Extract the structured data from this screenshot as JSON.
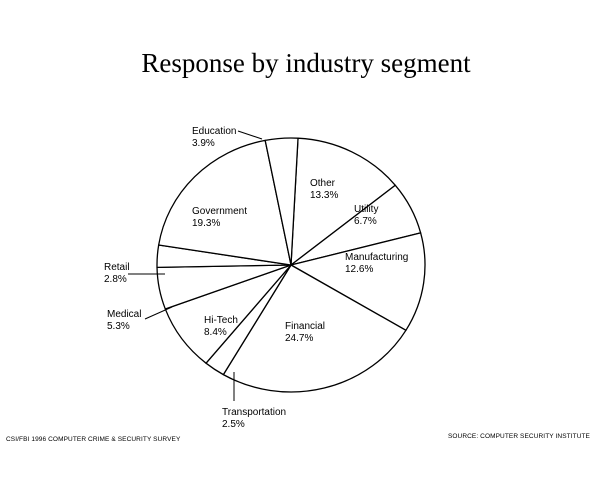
{
  "chart_data": {
    "type": "pie",
    "title": "Response by industry segment",
    "slices": [
      {
        "name": "Other",
        "value_label": "13.3%",
        "value": 13.3
      },
      {
        "name": "Utility",
        "value_label": "6.7%",
        "value": 6.7
      },
      {
        "name": "Manufacturing",
        "value_label": "12.6%",
        "value": 12.6
      },
      {
        "name": "Financial",
        "value_label": "24.7%",
        "value": 24.7
      },
      {
        "name": "Transportation",
        "value_label": "2.5%",
        "value": 2.5
      },
      {
        "name": "Hi-Tech",
        "value_label": "8.4%",
        "value": 8.4
      },
      {
        "name": "Medical",
        "value_label": "5.3%",
        "value": 5.3
      },
      {
        "name": "Retail",
        "value_label": "2.8%",
        "value": 2.8
      },
      {
        "name": "Government",
        "value_label": "19.3%",
        "value": 19.3
      },
      {
        "name": "Education",
        "value_label": "3.9%",
        "value": 3.9
      }
    ]
  },
  "footer": {
    "left": "CSI/FBI 1996 COMPUTER CRIME & SECURITY SURVEY",
    "right": "SOURCE: COMPUTER SECURITY INSTITUTE"
  }
}
